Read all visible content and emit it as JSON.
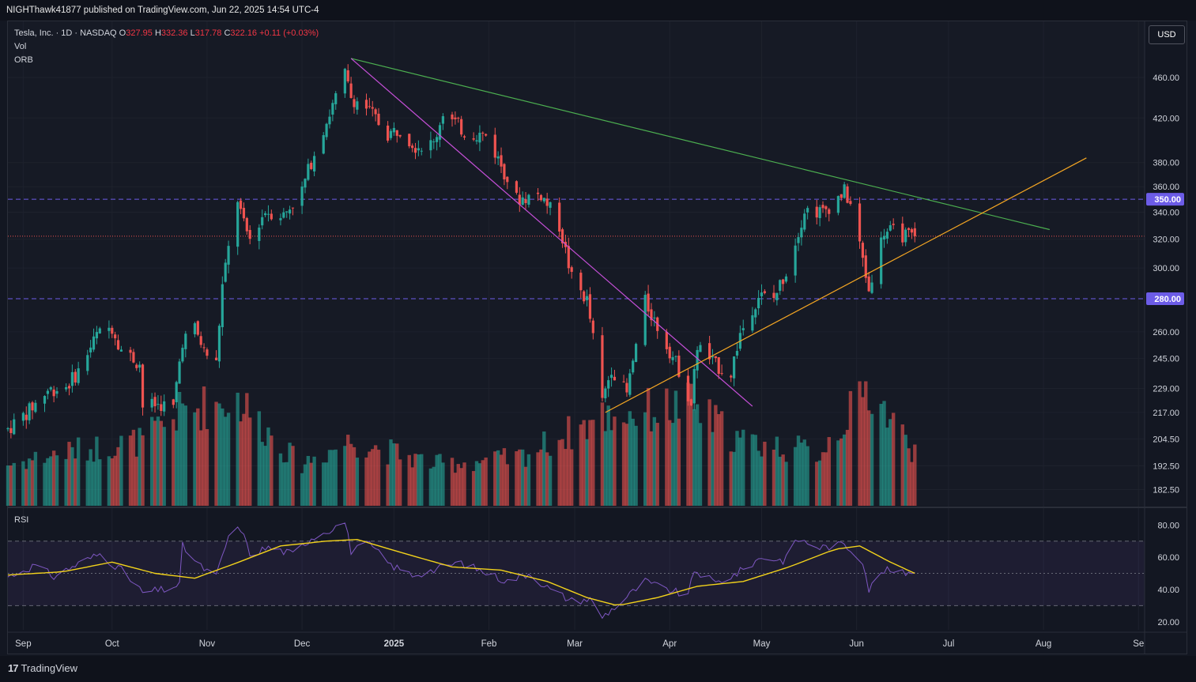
{
  "header": {
    "published": "NIGHThawk41877 published on TradingView.com, Jun 22, 2025 14:54 UTC-4"
  },
  "legend": {
    "symbol": "Tesla, Inc. · 1D · NASDAQ",
    "o_label": "O",
    "o": "327.95",
    "h_label": "H",
    "h": "332.36",
    "l_label": "L",
    "l": "317.78",
    "c_label": "C",
    "c": "322.16",
    "change": "+0.11 (+0.03%)",
    "vol": "Vol",
    "orb": "ORB"
  },
  "currency": "USD",
  "footer": {
    "logo_mark": "17",
    "brand": "TradingView"
  },
  "colors": {
    "up": "#26a69a",
    "down": "#ef5350",
    "background": "#131722",
    "grid": "#1e222d",
    "rsi": "#7e57c2",
    "rsi_ma": "#f2d21b",
    "orange_line": "#f5a623",
    "purple_line": "#c64fd8",
    "green_line": "#4caf50",
    "level": "#6c5ce7"
  },
  "chart_data": [
    {
      "type": "candlestick",
      "title": "Tesla, Inc. · 1D · NASDAQ",
      "y_scale": "log",
      "ylim": [
        176,
        492
      ],
      "price_ticks": [
        "460.00",
        "420.00",
        "380.00",
        "360.00",
        "340.00",
        "320.00",
        "300.00",
        "260.00",
        "245.00",
        "229.00",
        "217.00",
        "204.50",
        "192.50",
        "182.50"
      ],
      "month_labels": [
        "Sep",
        "Oct",
        "Nov",
        "Dec",
        "2025",
        "Feb",
        "Mar",
        "Apr",
        "May",
        "Jun",
        "Jul",
        "Aug",
        "Se"
      ],
      "x_range": [
        "2024-08-28",
        "2025-09-03"
      ],
      "month_dates": [
        "2024-09-02",
        "2024-10-01",
        "2024-11-01",
        "2024-12-02",
        "2025-01-01",
        "2025-02-01",
        "2025-03-01",
        "2025-04-01",
        "2025-05-01",
        "2025-06-01",
        "2025-07-01",
        "2025-08-01",
        "2025-09-01"
      ],
      "horizontal_levels": [
        {
          "price": 350,
          "label": "350.00",
          "style": "dashed"
        },
        {
          "price": 280,
          "label": "280.00",
          "style": "dashed"
        },
        {
          "price": 322.16,
          "style": "dotted"
        }
      ],
      "trendlines": [
        {
          "name": "green",
          "from": [
            "2024-12-18",
            480
          ],
          "to": [
            "2025-08-03",
            327
          ]
        },
        {
          "name": "purple",
          "from": [
            "2024-12-18",
            480
          ],
          "to": [
            "2025-04-28",
            220
          ]
        },
        {
          "name": "orange",
          "from": [
            "2025-03-11",
            217
          ],
          "to": [
            "2025-08-15",
            384
          ]
        }
      ],
      "candles_last": {
        "o": 327.95,
        "h": 332.36,
        "l": 317.78,
        "c": 322.16
      },
      "price_path": [
        [
          "2024-08-28",
          209
        ],
        [
          "2024-09-04",
          218
        ],
        [
          "2024-09-10",
          228
        ],
        [
          "2024-09-16",
          230
        ],
        [
          "2024-09-20",
          238
        ],
        [
          "2024-09-26",
          258
        ],
        [
          "2024-10-01",
          263
        ],
        [
          "2024-10-04",
          250
        ],
        [
          "2024-10-10",
          242
        ],
        [
          "2024-10-11",
          220
        ],
        [
          "2024-10-17",
          221
        ],
        [
          "2024-10-21",
          219
        ],
        [
          "2024-10-24",
          255
        ],
        [
          "2024-10-28",
          262
        ],
        [
          "2024-10-31",
          249
        ],
        [
          "2024-11-04",
          242
        ],
        [
          "2024-11-06",
          288
        ],
        [
          "2024-11-11",
          350
        ],
        [
          "2024-11-13",
          330
        ],
        [
          "2024-11-15",
          320
        ],
        [
          "2024-11-20",
          341
        ],
        [
          "2024-11-26",
          338
        ],
        [
          "2024-12-02",
          357
        ],
        [
          "2024-12-06",
          389
        ],
        [
          "2024-12-11",
          424
        ],
        [
          "2024-12-16",
          463
        ],
        [
          "2024-12-18",
          440
        ],
        [
          "2024-12-23",
          430
        ],
        [
          "2024-12-30",
          405
        ],
        [
          "2025-01-03",
          410
        ],
        [
          "2025-01-08",
          395
        ],
        [
          "2025-01-14",
          396
        ],
        [
          "2025-01-17",
          426
        ],
        [
          "2025-01-24",
          407
        ],
        [
          "2025-01-31",
          404
        ],
        [
          "2025-02-05",
          378
        ],
        [
          "2025-02-10",
          350
        ],
        [
          "2025-02-18",
          354
        ],
        [
          "2025-02-24",
          330
        ],
        [
          "2025-02-28",
          293
        ],
        [
          "2025-03-05",
          279
        ],
        [
          "2025-03-10",
          222
        ],
        [
          "2025-03-13",
          240
        ],
        [
          "2025-03-18",
          226
        ],
        [
          "2025-03-24",
          278
        ],
        [
          "2025-03-28",
          263
        ],
        [
          "2025-04-04",
          239
        ],
        [
          "2025-04-08",
          221
        ],
        [
          "2025-04-10",
          252
        ],
        [
          "2025-04-16",
          241
        ],
        [
          "2025-04-21",
          237
        ],
        [
          "2025-04-24",
          259
        ],
        [
          "2025-04-30",
          282
        ],
        [
          "2025-05-05",
          280
        ],
        [
          "2025-05-09",
          298
        ],
        [
          "2025-05-12",
          318
        ],
        [
          "2025-05-15",
          342
        ],
        [
          "2025-05-21",
          340
        ],
        [
          "2025-05-28",
          356
        ],
        [
          "2025-05-30",
          346
        ],
        [
          "2025-06-05",
          285
        ],
        [
          "2025-06-06",
          295
        ],
        [
          "2025-06-10",
          326
        ],
        [
          "2025-06-13",
          325
        ],
        [
          "2025-06-18",
          322
        ],
        [
          "2025-06-20",
          322.16
        ]
      ],
      "volume_path": [
        [
          "2024-08-28",
          0.35
        ],
        [
          "2024-09-15",
          0.45
        ],
        [
          "2024-10-11",
          0.55
        ],
        [
          "2024-10-24",
          0.8
        ],
        [
          "2024-11-11",
          0.9
        ],
        [
          "2024-12-01",
          0.35
        ],
        [
          "2024-12-18",
          0.55
        ],
        [
          "2025-01-15",
          0.35
        ],
        [
          "2025-02-10",
          0.4
        ],
        [
          "2025-03-10",
          0.75
        ],
        [
          "2025-04-08",
          0.85
        ],
        [
          "2025-04-24",
          0.55
        ],
        [
          "2025-05-20",
          0.45
        ],
        [
          "2025-06-05",
          1.0
        ],
        [
          "2025-06-20",
          0.45
        ]
      ]
    },
    {
      "type": "line",
      "title": "RSI",
      "ylim": [
        15,
        87
      ],
      "ticks": [
        "80.00",
        "60.00",
        "40.00",
        "20.00"
      ],
      "bands": [
        70,
        50,
        30
      ],
      "series": [
        {
          "name": "RSI",
          "points": [
            [
              "2024-08-28",
              48
            ],
            [
              "2024-09-06",
              55
            ],
            [
              "2024-09-12",
              48
            ],
            [
              "2024-09-20",
              56
            ],
            [
              "2024-09-27",
              62
            ],
            [
              "2024-10-04",
              52
            ],
            [
              "2024-10-11",
              38
            ],
            [
              "2024-10-18",
              40
            ],
            [
              "2024-10-23",
              43
            ],
            [
              "2024-10-24",
              67
            ],
            [
              "2024-10-30",
              54
            ],
            [
              "2024-11-04",
              48
            ],
            [
              "2024-11-08",
              73
            ],
            [
              "2024-11-12",
              78
            ],
            [
              "2024-11-15",
              62
            ],
            [
              "2024-11-21",
              66
            ],
            [
              "2024-11-29",
              62
            ],
            [
              "2024-12-05",
              72
            ],
            [
              "2024-12-12",
              78
            ],
            [
              "2024-12-16",
              82
            ],
            [
              "2024-12-18",
              64
            ],
            [
              "2024-12-24",
              68
            ],
            [
              "2024-12-31",
              55
            ],
            [
              "2025-01-07",
              49
            ],
            [
              "2025-01-14",
              52
            ],
            [
              "2025-01-22",
              57
            ],
            [
              "2025-01-29",
              52
            ],
            [
              "2025-02-07",
              45
            ],
            [
              "2025-02-14",
              50
            ],
            [
              "2025-02-21",
              40
            ],
            [
              "2025-02-28",
              33
            ],
            [
              "2025-03-06",
              34
            ],
            [
              "2025-03-10",
              23
            ],
            [
              "2025-03-14",
              29
            ],
            [
              "2025-03-24",
              45
            ],
            [
              "2025-03-28",
              42
            ],
            [
              "2025-04-07",
              36
            ],
            [
              "2025-04-09",
              52
            ],
            [
              "2025-04-16",
              44
            ],
            [
              "2025-04-23",
              50
            ],
            [
              "2025-05-01",
              60
            ],
            [
              "2025-05-08",
              58
            ],
            [
              "2025-05-13",
              71
            ],
            [
              "2025-05-20",
              66
            ],
            [
              "2025-05-28",
              68
            ],
            [
              "2025-06-03",
              58
            ],
            [
              "2025-06-05",
              40
            ],
            [
              "2025-06-10",
              52
            ],
            [
              "2025-06-16",
              50
            ],
            [
              "2025-06-20",
              52
            ]
          ]
        },
        {
          "name": "RSI MA",
          "points": [
            [
              "2024-08-28",
              49
            ],
            [
              "2024-09-15",
              51
            ],
            [
              "2024-10-01",
              57
            ],
            [
              "2024-10-15",
              50
            ],
            [
              "2024-10-28",
              47
            ],
            [
              "2024-11-10",
              56
            ],
            [
              "2024-11-25",
              67
            ],
            [
              "2024-12-10",
              70
            ],
            [
              "2024-12-20",
              71
            ],
            [
              "2025-01-05",
              62
            ],
            [
              "2025-01-20",
              54
            ],
            [
              "2025-02-05",
              52
            ],
            [
              "2025-02-20",
              45
            ],
            [
              "2025-03-05",
              35
            ],
            [
              "2025-03-15",
              30
            ],
            [
              "2025-03-28",
              35
            ],
            [
              "2025-04-10",
              42
            ],
            [
              "2025-04-25",
              45
            ],
            [
              "2025-05-10",
              54
            ],
            [
              "2025-05-25",
              65
            ],
            [
              "2025-06-02",
              67
            ],
            [
              "2025-06-12",
              57
            ],
            [
              "2025-06-20",
              50
            ]
          ]
        }
      ]
    }
  ]
}
